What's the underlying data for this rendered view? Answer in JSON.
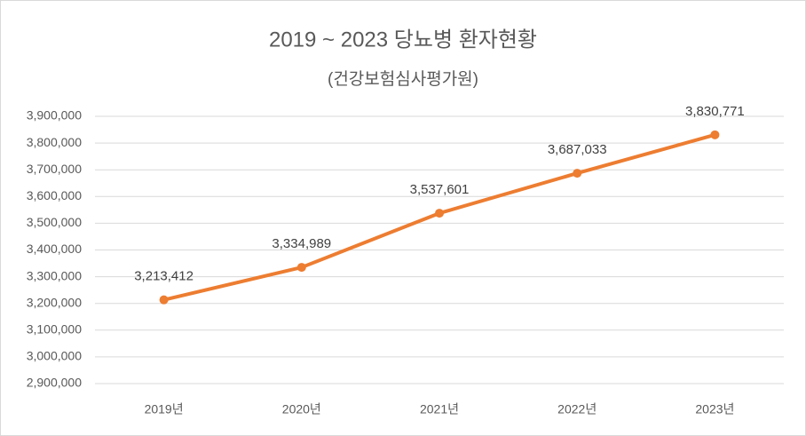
{
  "chart_data": {
    "type": "line",
    "title": "2019 ~ 2023 당뇨병 환자현황",
    "subtitle": "(건강보험심사평가원)",
    "categories": [
      "2019년",
      "2020년",
      "2021년",
      "2022년",
      "2023년"
    ],
    "values": [
      3213412,
      3334989,
      3537601,
      3687033,
      3830771
    ],
    "value_labels": [
      "3,213,412",
      "3,334,989",
      "3,537,601",
      "3,687,033",
      "3,830,771"
    ],
    "color": "#ed7d31",
    "ylim": [
      2900000,
      3900000
    ],
    "yticks": [
      {
        "value": 2900000,
        "label": "2,900,000"
      },
      {
        "value": 3000000,
        "label": "3,000,000"
      },
      {
        "value": 3100000,
        "label": "3,100,000"
      },
      {
        "value": 3200000,
        "label": "3,200,000"
      },
      {
        "value": 3300000,
        "label": "3,300,000"
      },
      {
        "value": 3400000,
        "label": "3,400,000"
      },
      {
        "value": 3500000,
        "label": "3,500,000"
      },
      {
        "value": 3600000,
        "label": "3,600,000"
      },
      {
        "value": 3700000,
        "label": "3,700,000"
      },
      {
        "value": 3800000,
        "label": "3,800,000"
      },
      {
        "value": 3900000,
        "label": "3,900,000"
      }
    ],
    "grid": true
  }
}
